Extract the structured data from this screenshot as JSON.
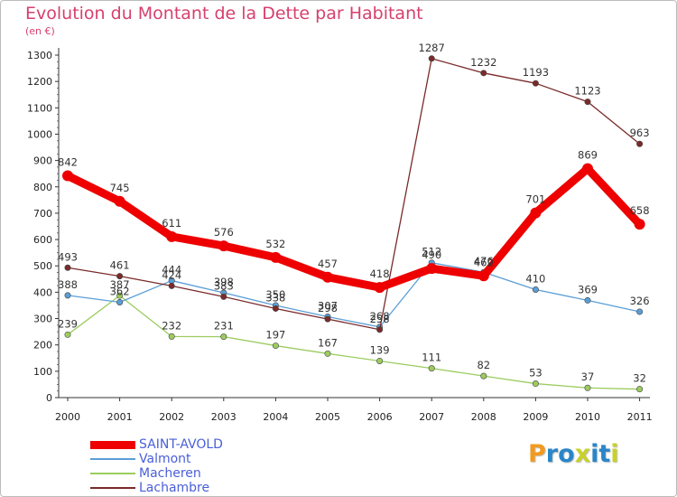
{
  "title": "Evolution du Montant de la Dette par Habitant",
  "subtitle": "(en €)",
  "logo": {
    "letters": [
      "P",
      "r",
      "o",
      "x",
      "i",
      "t",
      "i"
    ],
    "colors": [
      "#f29a1f",
      "#2a86c9",
      "#2a86c9",
      "#c7d12a",
      "#2a86c9",
      "#2a86c9",
      "#c7d12a"
    ]
  },
  "chart_data": {
    "type": "line",
    "x": [
      "2000",
      "2001",
      "2002",
      "2003",
      "2004",
      "2005",
      "2006",
      "2007",
      "2008",
      "2009",
      "2010",
      "2011"
    ],
    "ylim": [
      0,
      1300
    ],
    "yticks": [
      0,
      100,
      200,
      300,
      400,
      500,
      600,
      700,
      800,
      900,
      1000,
      1100,
      1200,
      1300
    ],
    "grid": false,
    "legend": "bottom-left",
    "series": [
      {
        "name": "SAINT-AVOLD",
        "color": "#ee0000",
        "values": [
          842,
          745,
          611,
          576,
          532,
          457,
          418,
          490,
          462,
          701,
          869,
          658
        ],
        "labels": [
          "842",
          "745",
          "611",
          "576",
          "532",
          "457",
          "418",
          "490",
          "462",
          "701",
          "869",
          "658"
        ]
      },
      {
        "name": "Valmont",
        "color": "#5a9ed6",
        "values": [
          388,
          362,
          444,
          398,
          350,
          307,
          268,
          512,
          476,
          410,
          369,
          326
        ],
        "labels": [
          "388",
          "362",
          "444",
          "398",
          "350",
          "307",
          "268",
          "512",
          "476",
          "410",
          "369",
          "326"
        ]
      },
      {
        "name": "Macheren",
        "color": "#9ccc5e",
        "values": [
          239,
          387,
          232,
          231,
          197,
          167,
          139,
          111,
          82,
          53,
          37,
          32
        ],
        "labels": [
          "239",
          "387",
          "232",
          "231",
          "197",
          "167",
          "139",
          "111",
          "82",
          "53",
          "37",
          "32"
        ]
      },
      {
        "name": "Lachambre",
        "color": "#7a2a2a",
        "values": [
          493,
          461,
          424,
          383,
          338,
          298,
          258,
          1287,
          1232,
          1193,
          1123,
          963
        ],
        "labels": [
          "493",
          "461",
          "424",
          "383",
          "338",
          "298",
          "258",
          "1287",
          "1232",
          "1193",
          "1123",
          "963"
        ]
      }
    ]
  }
}
